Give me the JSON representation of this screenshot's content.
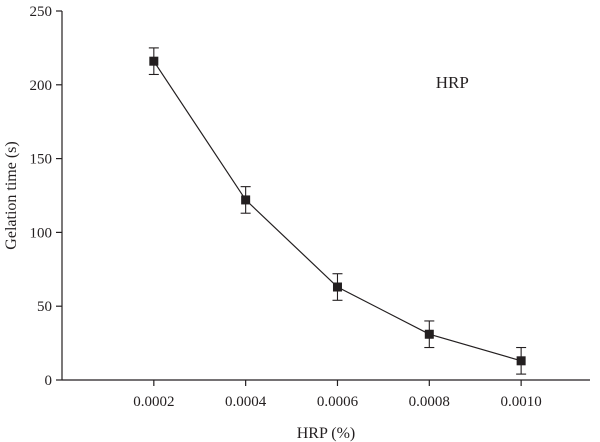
{
  "chart_data": {
    "type": "line",
    "title": "",
    "xlabel": "HRP (%)",
    "ylabel": "Gelation time (s)",
    "x": [
      0.0002,
      0.0004,
      0.0006,
      0.0008,
      0.001
    ],
    "x_tick_labels": [
      "0.0002",
      "0.0004",
      "0.0006",
      "0.0008",
      "0.0010"
    ],
    "xlim": [
      0.0,
      0.00115
    ],
    "ylim": [
      0,
      250
    ],
    "y_ticks": [
      0,
      50,
      100,
      150,
      200,
      250
    ],
    "y_tick_labels": [
      "0",
      "50",
      "100",
      "150",
      "200",
      "250"
    ],
    "grid": false,
    "series": [
      {
        "values": [
          216,
          122,
          63,
          31,
          13
        ],
        "errors": [
          9,
          9,
          9,
          9,
          9
        ],
        "marker": "square",
        "color": "#231f20"
      }
    ],
    "annotations": [
      {
        "text": "HRP",
        "x": 0.00085,
        "y": 198
      }
    ]
  }
}
